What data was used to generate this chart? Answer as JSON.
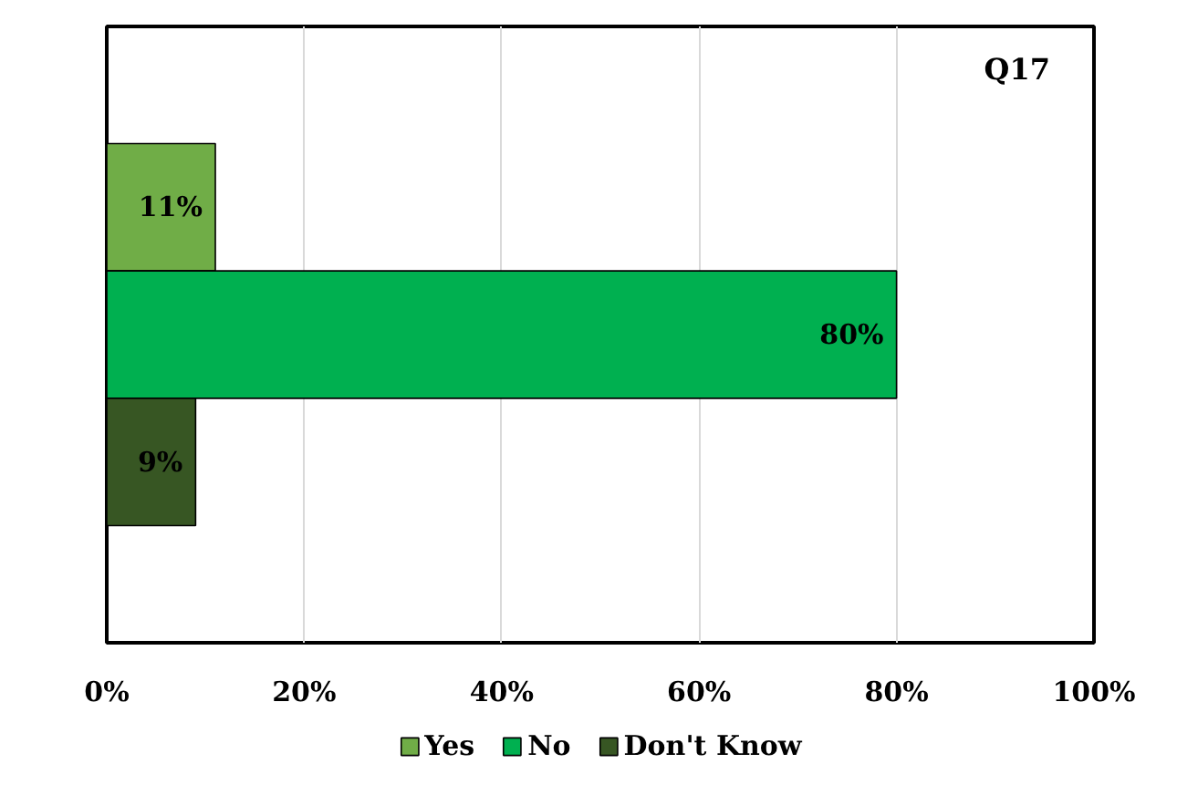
{
  "chart_data": {
    "type": "bar",
    "orientation": "horizontal",
    "title": "Q17",
    "categories": [
      null
    ],
    "series": [
      {
        "name": "Yes",
        "color": "#70ad47",
        "values": [
          11
        ],
        "value_labels": [
          "11%"
        ]
      },
      {
        "name": "No",
        "color": "#00b050",
        "values": [
          80
        ],
        "value_labels": [
          "80%"
        ]
      },
      {
        "name": "Don't Know",
        "color": "#375623",
        "values": [
          9
        ],
        "value_labels": [
          "9%"
        ]
      }
    ],
    "xlim": [
      0,
      100
    ],
    "xticks": [
      {
        "value": 0,
        "label": "0%"
      },
      {
        "value": 20,
        "label": "20%"
      },
      {
        "value": 40,
        "label": "40%"
      },
      {
        "value": 60,
        "label": "60%"
      },
      {
        "value": 80,
        "label": "80%"
      },
      {
        "value": 100,
        "label": "100%"
      }
    ],
    "grid": "x",
    "legend": "bottom"
  }
}
